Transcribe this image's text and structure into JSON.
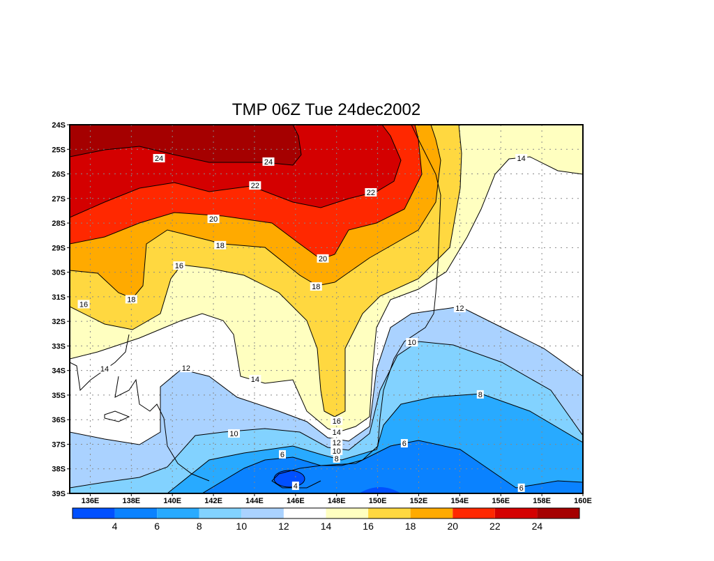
{
  "chart_data": {
    "type": "heatmap",
    "subtype": "filled-contour-map",
    "title": "TMP 06Z Tue 24dec2002",
    "variable": "TMP",
    "xlim": [
      135,
      160
    ],
    "ylim": [
      -39,
      -24
    ],
    "grid": true,
    "x_ticks": [
      "136E",
      "138E",
      "140E",
      "142E",
      "144E",
      "146E",
      "148E",
      "150E",
      "152E",
      "154E",
      "156E",
      "158E",
      "160E"
    ],
    "y_ticks": [
      "24S",
      "25S",
      "26S",
      "27S",
      "28S",
      "29S",
      "30S",
      "31S",
      "32S",
      "33S",
      "34S",
      "35S",
      "36S",
      "37S",
      "38S",
      "39S"
    ],
    "levels": [
      4,
      6,
      8,
      10,
      12,
      14,
      16,
      18,
      20,
      22,
      24
    ],
    "level_labels": [
      "4",
      "6",
      "8",
      "10",
      "12",
      "14",
      "16",
      "18",
      "20",
      "22",
      "24"
    ],
    "colors": [
      "#0050ff",
      "#0a82ff",
      "#28aaff",
      "#82d2ff",
      "#aad2ff",
      "#ffffff",
      "#ffffc0",
      "#ffd840",
      "#ffaa00",
      "#ff2800",
      "#d40000",
      "#a50000"
    ],
    "contour_labels": [
      {
        "text": "24",
        "lon": 139.35,
        "lat": -25.36
      },
      {
        "text": "24",
        "lon": 144.68,
        "lat": -25.5
      },
      {
        "text": "22",
        "lon": 144.03,
        "lat": -26.47
      },
      {
        "text": "22",
        "lon": 149.67,
        "lat": -26.75
      },
      {
        "text": "20",
        "lon": 142.0,
        "lat": -27.83
      },
      {
        "text": "20",
        "lon": 147.33,
        "lat": -29.44
      },
      {
        "text": "18",
        "lon": 142.33,
        "lat": -28.9
      },
      {
        "text": "18",
        "lon": 147.0,
        "lat": -30.58
      },
      {
        "text": "18",
        "lon": 138.0,
        "lat": -31.1
      },
      {
        "text": "16",
        "lon": 140.33,
        "lat": -29.73
      },
      {
        "text": "16",
        "lon": 135.68,
        "lat": -31.3
      },
      {
        "text": "16",
        "lon": 148.0,
        "lat": -36.05
      },
      {
        "text": "14",
        "lon": 157.0,
        "lat": -25.36
      },
      {
        "text": "14",
        "lon": 136.7,
        "lat": -33.92
      },
      {
        "text": "14",
        "lon": 144.03,
        "lat": -34.35
      },
      {
        "text": "14",
        "lon": 148.0,
        "lat": -36.5
      },
      {
        "text": "12",
        "lon": 154.0,
        "lat": -31.46
      },
      {
        "text": "12",
        "lon": 140.67,
        "lat": -33.9
      },
      {
        "text": "12",
        "lon": 148.0,
        "lat": -36.93
      },
      {
        "text": "10",
        "lon": 151.67,
        "lat": -32.85
      },
      {
        "text": "10",
        "lon": 143.0,
        "lat": -36.56
      },
      {
        "text": "10",
        "lon": 148.0,
        "lat": -37.27
      },
      {
        "text": "8",
        "lon": 155.0,
        "lat": -34.97
      },
      {
        "text": "8",
        "lon": 148.0,
        "lat": -37.58
      },
      {
        "text": "6",
        "lon": 145.36,
        "lat": -37.41
      },
      {
        "text": "6",
        "lon": 151.3,
        "lat": -36.96
      },
      {
        "text": "6",
        "lon": 157.0,
        "lat": -38.77
      },
      {
        "text": "4",
        "lon": 146.0,
        "lat": -38.69
      }
    ]
  }
}
